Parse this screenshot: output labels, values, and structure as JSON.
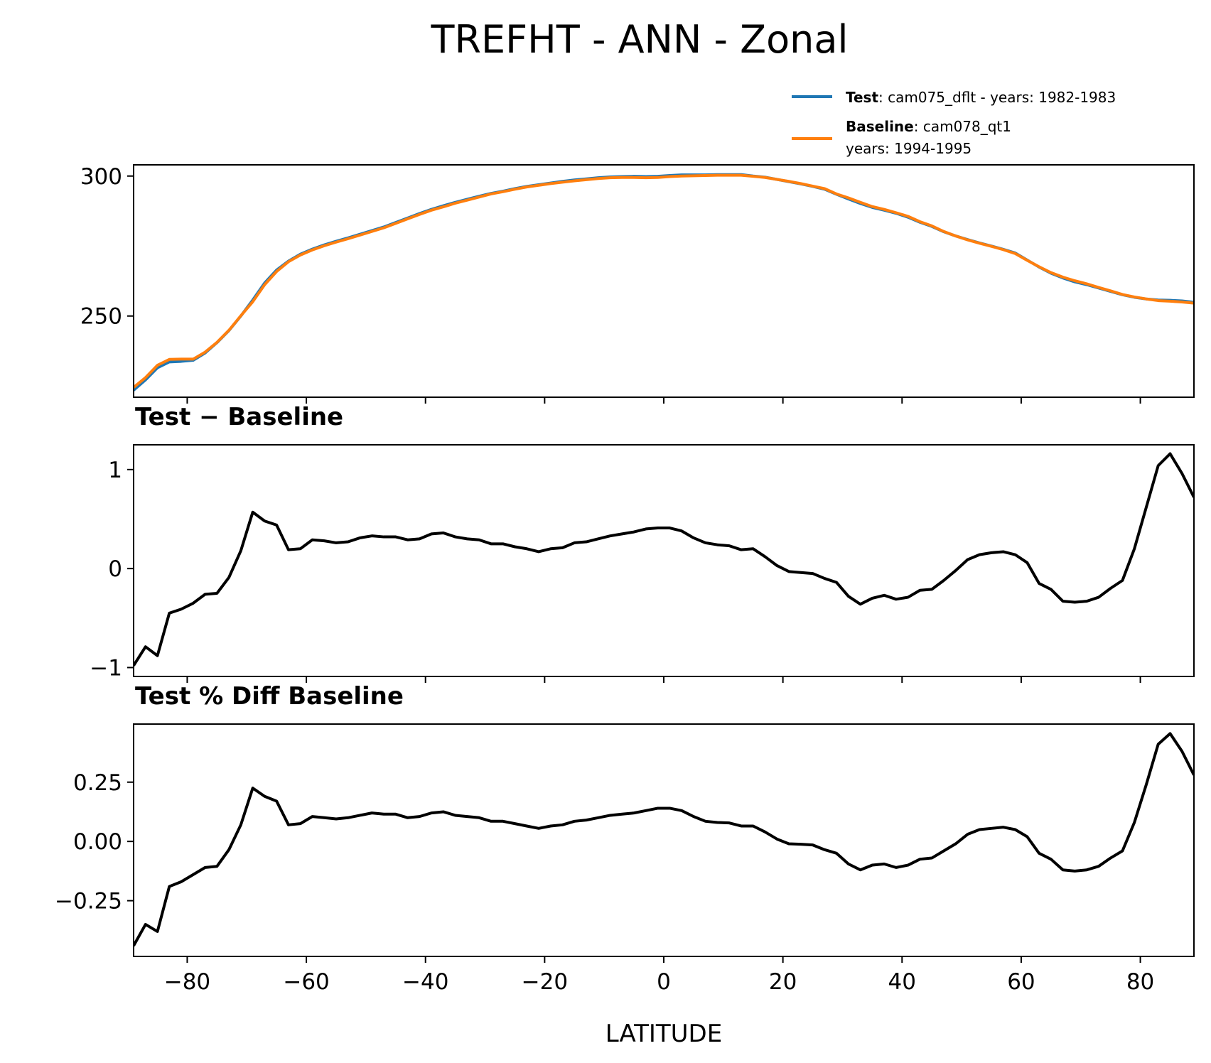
{
  "chart_data": [
    {
      "type": "line",
      "title": "TREFHT - ANN - Zonal",
      "xlabel": "",
      "ylabel": "",
      "xlim": [
        -89,
        89
      ],
      "ylim": [
        221,
        304
      ],
      "yticks": [
        250,
        300
      ],
      "ytick_labels": [
        "250",
        "300"
      ],
      "legend_position": "above-right",
      "x": [
        -89,
        -87,
        -85,
        -83,
        -81,
        -79,
        -77,
        -75,
        -73,
        -71,
        -69,
        -67,
        -65,
        -63,
        -61,
        -59,
        -57,
        -55,
        -53,
        -51,
        -49,
        -47,
        -45,
        -43,
        -41,
        -39,
        -37,
        -35,
        -33,
        -31,
        -29,
        -27,
        -25,
        -23,
        -21,
        -19,
        -17,
        -15,
        -13,
        -11,
        -9,
        -7,
        -5,
        -3,
        -1,
        1,
        3,
        5,
        7,
        9,
        11,
        13,
        15,
        17,
        19,
        21,
        23,
        25,
        27,
        29,
        31,
        33,
        35,
        37,
        39,
        41,
        43,
        45,
        47,
        49,
        51,
        53,
        55,
        57,
        59,
        61,
        63,
        65,
        67,
        69,
        71,
        73,
        75,
        77,
        79,
        81,
        83,
        85,
        87,
        89
      ],
      "series": [
        {
          "name": "",
          "legend_bold": "Test",
          "legend_text": ": cam075_dflt - years: 1982-1983",
          "color": "#1f77b4",
          "values": [
            223.5,
            227.2,
            231.5,
            233.6,
            233.8,
            234.2,
            236.8,
            240.5,
            244.8,
            250,
            255.7,
            261.8,
            266.4,
            269.6,
            272.1,
            273.9,
            275.4,
            276.7,
            277.9,
            279.2,
            280.5,
            281.8,
            283.4,
            285,
            286.6,
            288.1,
            289.4,
            290.6,
            291.7,
            292.8,
            293.8,
            294.6,
            295.5,
            296.3,
            296.9,
            297.5,
            298.1,
            298.6,
            299,
            299.4,
            299.7,
            299.8,
            299.9,
            299.8,
            299.9,
            300.2,
            300.4,
            300.4,
            300.4,
            300.5,
            300.5,
            300.5,
            300,
            299.6,
            298.8,
            298,
            297.2,
            296.3,
            295.3,
            293.5,
            291.8,
            290.2,
            288.8,
            287.8,
            286.7,
            285.3,
            283.5,
            282,
            280.1,
            278.6,
            277.3,
            276.1,
            275,
            273.8,
            272.5,
            270,
            267.5,
            265.3,
            263.6,
            262.2,
            261.2,
            260,
            258.8,
            257.6,
            256.7,
            256.1,
            255.7,
            255.6,
            255.4,
            254.9
          ]
        },
        {
          "name": "",
          "legend_bold": "Baseline",
          "legend_text": ": cam078_qt1",
          "legend_text2": "years: 1994-1995",
          "color": "#ff7f0e",
          "values": [
            224.5,
            228,
            232.4,
            234.5,
            234.6,
            234.6,
            237.1,
            240.6,
            244.9,
            250.1,
            255.1,
            261.2,
            265.9,
            269.4,
            271.8,
            273.6,
            275.1,
            276.4,
            277.6,
            278.9,
            280.2,
            281.5,
            283.1,
            284.7,
            286.3,
            287.8,
            289,
            290.3,
            291.4,
            292.5,
            293.6,
            294.4,
            295.3,
            296.1,
            296.7,
            297.3,
            297.8,
            298.3,
            298.7,
            299.1,
            299.4,
            299.5,
            299.5,
            299.4,
            299.5,
            299.8,
            300,
            300.1,
            300.2,
            300.3,
            300.3,
            300.3,
            299.9,
            299.5,
            298.8,
            298.1,
            297.3,
            296.4,
            295.5,
            293.6,
            292.2,
            290.6,
            289.1,
            288.1,
            286.9,
            285.6,
            283.7,
            282.2,
            280.2,
            278.6,
            277.2,
            276,
            274.9,
            273.7,
            272.3,
            269.9,
            267.6,
            265.5,
            263.9,
            262.6,
            261.5,
            260.2,
            259,
            257.7,
            256.8,
            256.1,
            255.5,
            255.3,
            255,
            254.6
          ]
        }
      ]
    },
    {
      "type": "line",
      "title": "Test − Baseline",
      "xlabel": "",
      "ylabel": "",
      "xlim": [
        -89,
        89
      ],
      "ylim": [
        -1.09,
        1.25
      ],
      "yticks": [
        -1,
        0,
        1
      ],
      "ytick_labels": [
        "−1",
        "0",
        "1"
      ],
      "x": [
        -89,
        -87,
        -85,
        -83,
        -81,
        -79,
        -77,
        -75,
        -73,
        -71,
        -69,
        -67,
        -65,
        -63,
        -61,
        -59,
        -57,
        -55,
        -53,
        -51,
        -49,
        -47,
        -45,
        -43,
        -41,
        -39,
        -37,
        -35,
        -33,
        -31,
        -29,
        -27,
        -25,
        -23,
        -21,
        -19,
        -17,
        -15,
        -13,
        -11,
        -9,
        -7,
        -5,
        -3,
        -1,
        1,
        3,
        5,
        7,
        9,
        11,
        13,
        15,
        17,
        19,
        21,
        23,
        25,
        27,
        29,
        31,
        33,
        35,
        37,
        39,
        41,
        43,
        45,
        47,
        49,
        51,
        53,
        55,
        57,
        59,
        61,
        63,
        65,
        67,
        69,
        71,
        73,
        75,
        77,
        79,
        81,
        83,
        85,
        87,
        89
      ],
      "series": [
        {
          "name": "",
          "color": "#000000",
          "values": [
            -0.98,
            -0.79,
            -0.88,
            -0.45,
            -0.41,
            -0.35,
            -0.26,
            -0.25,
            -0.09,
            0.18,
            0.57,
            0.48,
            0.44,
            0.19,
            0.2,
            0.29,
            0.28,
            0.26,
            0.27,
            0.31,
            0.33,
            0.32,
            0.32,
            0.29,
            0.3,
            0.35,
            0.36,
            0.32,
            0.3,
            0.29,
            0.25,
            0.25,
            0.22,
            0.2,
            0.17,
            0.2,
            0.21,
            0.26,
            0.27,
            0.3,
            0.33,
            0.35,
            0.37,
            0.4,
            0.41,
            0.41,
            0.38,
            0.31,
            0.26,
            0.24,
            0.23,
            0.19,
            0.2,
            0.12,
            0.03,
            -0.03,
            -0.04,
            -0.05,
            -0.1,
            -0.14,
            -0.28,
            -0.36,
            -0.3,
            -0.27,
            -0.31,
            -0.29,
            -0.22,
            -0.21,
            -0.12,
            -0.02,
            0.09,
            0.14,
            0.16,
            0.17,
            0.14,
            0.06,
            -0.15,
            -0.21,
            -0.33,
            -0.34,
            -0.33,
            -0.29,
            -0.2,
            -0.12,
            0.2,
            0.62,
            1.04,
            1.16,
            0.96,
            0.72
          ]
        }
      ]
    },
    {
      "type": "line",
      "title": "Test % Diff Baseline",
      "xlabel": "LATITUDE",
      "ylabel": "",
      "xlim": [
        -89,
        89
      ],
      "ylim": [
        -0.485,
        0.495
      ],
      "yticks": [
        -0.25,
        0,
        0.25
      ],
      "ytick_labels": [
        "−0.25",
        "0.00",
        "0.25"
      ],
      "xticks": [
        -80,
        -60,
        -40,
        -20,
        0,
        20,
        40,
        60,
        80
      ],
      "xtick_labels": [
        "−80",
        "−60",
        "−40",
        "−20",
        "0",
        "20",
        "40",
        "60",
        "80"
      ],
      "x": [
        -89,
        -87,
        -85,
        -83,
        -81,
        -79,
        -77,
        -75,
        -73,
        -71,
        -69,
        -67,
        -65,
        -63,
        -61,
        -59,
        -57,
        -55,
        -53,
        -51,
        -49,
        -47,
        -45,
        -43,
        -41,
        -39,
        -37,
        -35,
        -33,
        -31,
        -29,
        -27,
        -25,
        -23,
        -21,
        -19,
        -17,
        -15,
        -13,
        -11,
        -9,
        -7,
        -5,
        -3,
        -1,
        1,
        3,
        5,
        7,
        9,
        11,
        13,
        15,
        17,
        19,
        21,
        23,
        25,
        27,
        29,
        31,
        33,
        35,
        37,
        39,
        41,
        43,
        45,
        47,
        49,
        51,
        53,
        55,
        57,
        59,
        61,
        63,
        65,
        67,
        69,
        71,
        73,
        75,
        77,
        79,
        81,
        83,
        85,
        87,
        89
      ],
      "series": [
        {
          "name": "",
          "color": "#000000",
          "values": [
            -0.44,
            -0.35,
            -0.38,
            -0.19,
            -0.17,
            -0.14,
            -0.11,
            -0.105,
            -0.035,
            0.07,
            0.225,
            0.19,
            0.17,
            0.07,
            0.075,
            0.105,
            0.1,
            0.095,
            0.1,
            0.11,
            0.12,
            0.115,
            0.115,
            0.1,
            0.105,
            0.12,
            0.125,
            0.11,
            0.105,
            0.1,
            0.085,
            0.085,
            0.075,
            0.065,
            0.055,
            0.065,
            0.07,
            0.085,
            0.09,
            0.1,
            0.11,
            0.115,
            0.12,
            0.13,
            0.14,
            0.14,
            0.13,
            0.105,
            0.085,
            0.08,
            0.078,
            0.065,
            0.065,
            0.04,
            0.01,
            -0.01,
            -0.012,
            -0.015,
            -0.035,
            -0.05,
            -0.095,
            -0.12,
            -0.1,
            -0.095,
            -0.11,
            -0.1,
            -0.075,
            -0.07,
            -0.04,
            -0.01,
            0.03,
            0.05,
            0.055,
            0.06,
            0.05,
            0.02,
            -0.05,
            -0.075,
            -0.12,
            -0.125,
            -0.12,
            -0.105,
            -0.07,
            -0.04,
            0.08,
            0.24,
            0.41,
            0.455,
            0.38,
            0.28
          ]
        }
      ]
    }
  ]
}
